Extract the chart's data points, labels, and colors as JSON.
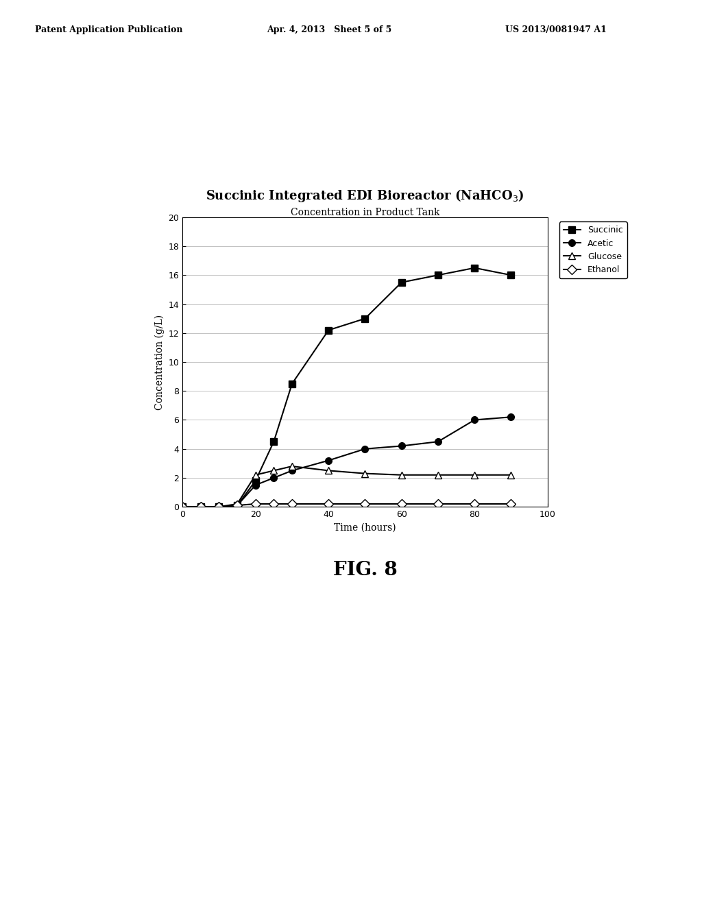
{
  "title": "Succinic Integrated EDI Bioreactor (NaHCO$_3$)",
  "subtitle": "Concentration in Product Tank",
  "xlabel": "Time (hours)",
  "ylabel": "Concentration (g/L)",
  "xlim": [
    0,
    100
  ],
  "ylim": [
    0,
    20
  ],
  "yticks": [
    0,
    2,
    4,
    6,
    8,
    10,
    12,
    14,
    16,
    18,
    20
  ],
  "xticks": [
    0,
    20,
    40,
    60,
    80,
    100
  ],
  "succinic_x": [
    0,
    5,
    10,
    15,
    20,
    25,
    30,
    40,
    50,
    60,
    70,
    80,
    90
  ],
  "succinic_y": [
    0,
    0,
    0,
    0.1,
    1.8,
    4.5,
    8.5,
    12.2,
    13.0,
    15.5,
    16.0,
    16.5,
    16.0
  ],
  "acetic_x": [
    0,
    5,
    10,
    15,
    20,
    25,
    30,
    40,
    50,
    60,
    70,
    80,
    90
  ],
  "acetic_y": [
    0,
    0,
    0,
    0.1,
    1.5,
    2.0,
    2.5,
    3.2,
    4.0,
    4.2,
    4.5,
    6.0,
    6.2
  ],
  "glucose_x": [
    0,
    5,
    10,
    15,
    20,
    25,
    30,
    40,
    50,
    60,
    70,
    80,
    90
  ],
  "glucose_y": [
    0,
    0,
    0,
    0.2,
    2.2,
    2.5,
    2.8,
    2.5,
    2.3,
    2.2,
    2.2,
    2.2,
    2.2
  ],
  "ethanol_x": [
    0,
    5,
    10,
    15,
    20,
    25,
    30,
    40,
    50,
    60,
    70,
    80,
    90
  ],
  "ethanol_y": [
    0,
    0,
    0,
    0.1,
    0.2,
    0.2,
    0.2,
    0.2,
    0.2,
    0.2,
    0.2,
    0.2,
    0.2
  ],
  "line_color": "#000000",
  "background_color": "#ffffff",
  "fig_caption": "FIG. 8",
  "header_left": "Patent Application Publication",
  "header_mid": "Apr. 4, 2013   Sheet 5 of 5",
  "header_right": "US 2013/0081947 A1"
}
